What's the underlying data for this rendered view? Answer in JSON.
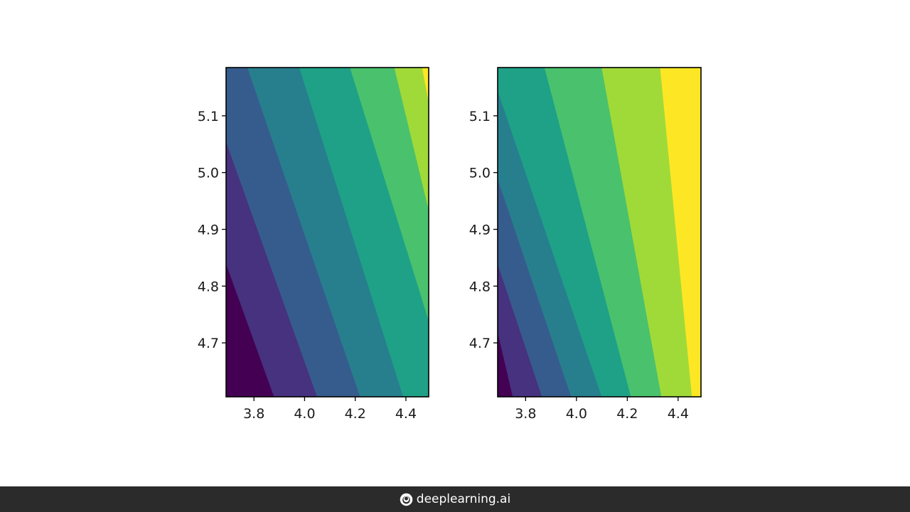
{
  "chart_data": [
    {
      "type": "heatmap",
      "subtype": "filled-contour",
      "colormap": "viridis",
      "levels": 8,
      "xlim": [
        3.69,
        4.49
      ],
      "ylim": [
        4.605,
        5.185
      ],
      "x_ticks": [
        "3.8",
        "4.0",
        "4.2",
        "4.4"
      ],
      "x_tick_values": [
        3.8,
        4.0,
        4.2,
        4.4
      ],
      "y_ticks": [
        "4.7",
        "4.8",
        "4.9",
        "5.0",
        "5.1"
      ],
      "y_tick_values": [
        4.7,
        4.8,
        4.9,
        5.0,
        5.1
      ],
      "contour_boundaries": [
        [
          [
            3.69,
            4.84
          ],
          [
            3.88,
            4.605
          ]
        ],
        [
          [
            3.69,
            5.055
          ],
          [
            4.05,
            4.605
          ]
        ],
        [
          [
            3.775,
            5.185
          ],
          [
            4.22,
            4.605
          ]
        ],
        [
          [
            3.98,
            5.185
          ],
          [
            4.39,
            4.605
          ]
        ],
        [
          [
            4.18,
            5.185
          ],
          [
            4.49,
            4.74
          ]
        ],
        [
          [
            4.355,
            5.185
          ],
          [
            4.49,
            4.935
          ]
        ],
        [
          [
            4.465,
            5.185
          ],
          [
            4.49,
            5.125
          ]
        ]
      ],
      "grid": false
    },
    {
      "type": "heatmap",
      "subtype": "filled-contour",
      "colormap": "viridis",
      "levels": 8,
      "xlim": [
        3.69,
        4.49
      ],
      "ylim": [
        4.605,
        5.185
      ],
      "x_ticks": [
        "3.8",
        "4.0",
        "4.2",
        "4.4"
      ],
      "x_tick_values": [
        3.8,
        4.0,
        4.2,
        4.4
      ],
      "y_ticks": [
        "4.7",
        "4.8",
        "4.9",
        "5.0",
        "5.1"
      ],
      "y_tick_values": [
        4.7,
        4.8,
        4.9,
        5.0,
        5.1
      ],
      "contour_boundaries": [
        [
          [
            3.69,
            4.72
          ],
          [
            3.75,
            4.605
          ]
        ],
        [
          [
            3.69,
            4.84
          ],
          [
            3.865,
            4.605
          ]
        ],
        [
          [
            3.69,
            4.99
          ],
          [
            3.98,
            4.605
          ]
        ],
        [
          [
            3.69,
            5.145
          ],
          [
            4.1,
            4.605
          ]
        ],
        [
          [
            3.875,
            5.185
          ],
          [
            4.215,
            4.605
          ]
        ],
        [
          [
            4.1,
            5.185
          ],
          [
            4.335,
            4.605
          ]
        ],
        [
          [
            4.33,
            5.185
          ],
          [
            4.455,
            4.605
          ]
        ]
      ],
      "grid": false
    }
  ],
  "colors": {
    "viridis_8": [
      "#440154",
      "#46327e",
      "#365c8d",
      "#277f8e",
      "#1fa187",
      "#4ac16d",
      "#a0da39",
      "#fde725"
    ],
    "footer_bg": "#2b2b2b"
  },
  "footer": {
    "logo_icon": "deeplearning-logo-icon",
    "brand": "deeplearning.ai"
  }
}
